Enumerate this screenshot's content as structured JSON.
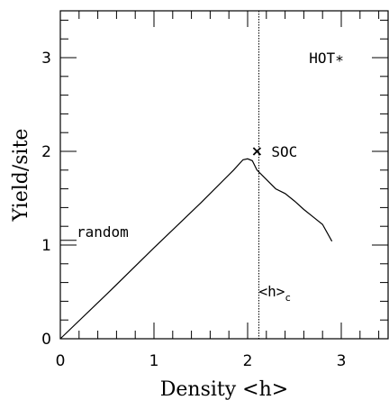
{
  "chart_data": {
    "type": "line",
    "xlabel": "Density <h>",
    "ylabel": "Yield/site",
    "xlim": [
      0,
      3.5
    ],
    "ylim": [
      0,
      3.5
    ],
    "x_major_ticks": [
      0,
      1,
      2,
      3
    ],
    "y_major_ticks": [
      0,
      1,
      2,
      3
    ],
    "x_tick_labels": [
      "0",
      "1",
      "2",
      "3"
    ],
    "y_tick_labels": [
      "0",
      "1",
      "2",
      "3"
    ],
    "minor_step": 0.2,
    "grid": false,
    "series": [
      {
        "x": [
          0,
          0.5,
          1.0,
          1.5,
          1.85,
          1.95,
          2.0,
          2.05,
          2.1,
          2.2,
          2.3,
          2.4,
          2.5,
          2.6,
          2.7,
          2.8,
          2.9
        ],
        "y": [
          0,
          0.48,
          0.97,
          1.45,
          1.8,
          1.91,
          1.92,
          1.9,
          1.8,
          1.7,
          1.6,
          1.55,
          1.47,
          1.38,
          1.3,
          1.22,
          1.04
        ]
      }
    ],
    "critical_line": {
      "x": 2.12,
      "label": "<h>",
      "subscript": "c"
    },
    "soc_point": {
      "x": 2.1,
      "y": 2.0,
      "symbol": "×",
      "label": "SOC"
    },
    "hot_point": {
      "x": 2.95,
      "y": 3.0,
      "label": "HOT",
      "symbol": "∗"
    },
    "random_marker": {
      "x": 0.0,
      "y": 1.05,
      "label": "random"
    }
  }
}
